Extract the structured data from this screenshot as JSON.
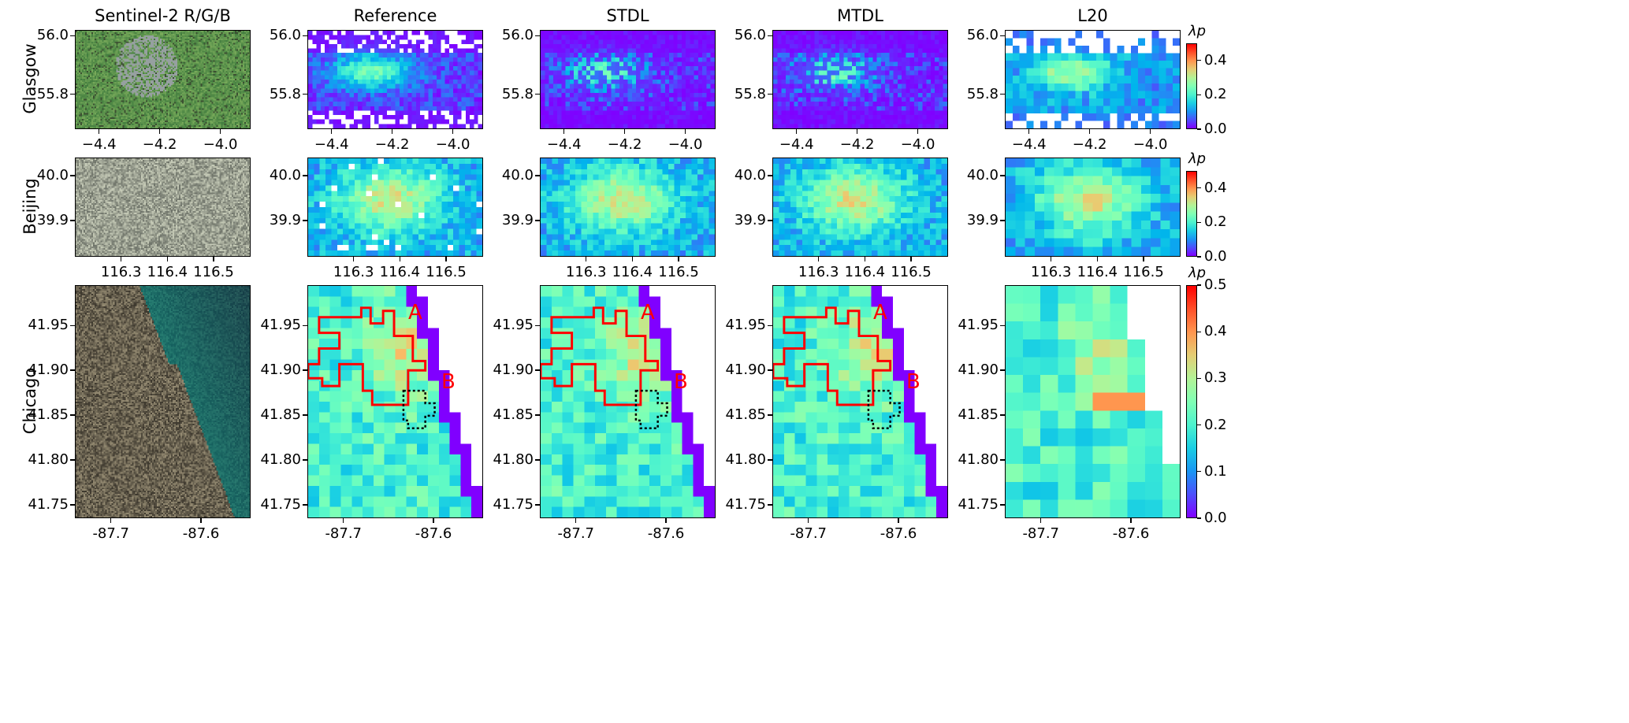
{
  "figure": {
    "type": "heatmap",
    "column_titles": [
      "Sentinel-2 R/G/B",
      "Reference",
      "STDL",
      "MTDL",
      "L20"
    ],
    "rows": [
      {
        "label": "Glasgow",
        "x_ticks": [
          "−4.4",
          "−4.2",
          "−4.0"
        ],
        "x_tick_values": [
          -4.4,
          -4.2,
          -4.0
        ],
        "xlim": [
          -4.48,
          -3.9
        ],
        "y_ticks": [
          "56.0",
          "55.8"
        ],
        "y_tick_values": [
          56.0,
          55.8
        ],
        "ylim": [
          55.68,
          56.02
        ],
        "colorbar": {
          "label": "λp",
          "ticks": [
            "0.0",
            "0.2",
            "0.4"
          ],
          "range": [
            0,
            0.5
          ]
        }
      },
      {
        "label": "Beijing",
        "x_ticks": [
          "116.3",
          "116.4",
          "116.5"
        ],
        "x_tick_values": [
          116.3,
          116.4,
          116.5
        ],
        "xlim": [
          116.2,
          116.58
        ],
        "y_ticks": [
          "40.0",
          "39.9"
        ],
        "y_tick_values": [
          40.0,
          39.9
        ],
        "ylim": [
          39.82,
          40.04
        ],
        "colorbar": {
          "label": "λp",
          "ticks": [
            "0.0",
            "0.2",
            "0.4"
          ],
          "range": [
            0,
            0.5
          ]
        }
      },
      {
        "label": "Chicago",
        "x_ticks": [
          "-87.7",
          "-87.6"
        ],
        "x_tick_values": [
          -87.7,
          -87.6
        ],
        "xlim": [
          -87.74,
          -87.545
        ],
        "y_ticks": [
          "41.95",
          "41.90",
          "41.85",
          "41.80",
          "41.75"
        ],
        "y_tick_values": [
          41.95,
          41.9,
          41.85,
          41.8,
          41.75
        ],
        "ylim": [
          41.735,
          41.995
        ],
        "colorbar": {
          "label": "λp",
          "ticks": [
            "0.0",
            "0.1",
            "0.2",
            "0.3",
            "0.4",
            "0.5"
          ],
          "range": [
            0,
            0.5
          ]
        },
        "annotations": [
          "A",
          "B"
        ]
      }
    ],
    "colormap": "rainbow",
    "outline_colors": {
      "region_A": "#ff0000",
      "region_B": "#000000"
    }
  }
}
